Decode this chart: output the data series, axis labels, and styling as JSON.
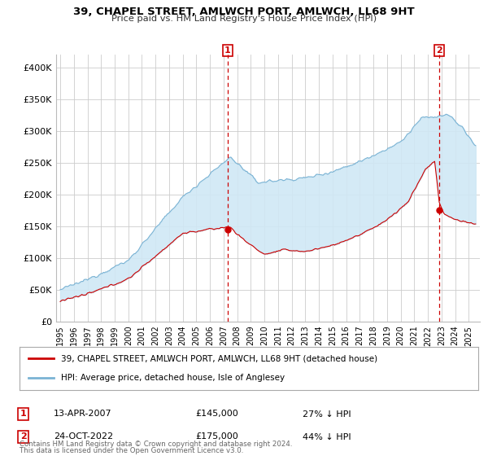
{
  "title": "39, CHAPEL STREET, AMLWCH PORT, AMLWCH, LL68 9HT",
  "subtitle": "Price paid vs. HM Land Registry's House Price Index (HPI)",
  "ylabel_ticks": [
    "£0",
    "£50K",
    "£100K",
    "£150K",
    "£200K",
    "£250K",
    "£300K",
    "£350K",
    "£400K"
  ],
  "ytick_values": [
    0,
    50000,
    100000,
    150000,
    200000,
    250000,
    300000,
    350000,
    400000
  ],
  "ylim": [
    0,
    420000
  ],
  "xlim_start": 1994.7,
  "xlim_end": 2025.8,
  "marker1_x": 2007.29,
  "marker1_y": 145000,
  "marker1_label": "13-APR-2007",
  "marker1_price": "£145,000",
  "marker1_hpi": "27% ↓ HPI",
  "marker2_x": 2022.81,
  "marker2_y": 175000,
  "marker2_label": "24-OCT-2022",
  "marker2_price": "£175,000",
  "marker2_hpi": "44% ↓ HPI",
  "legend_line1": "39, CHAPEL STREET, AMLWCH PORT, AMLWCH, LL68 9HT (detached house)",
  "legend_line2": "HPI: Average price, detached house, Isle of Anglesey",
  "footer1": "Contains HM Land Registry data © Crown copyright and database right 2024.",
  "footer2": "This data is licensed under the Open Government Licence v3.0.",
  "hpi_color": "#7ab3d4",
  "hpi_fill_color": "#d0e8f5",
  "price_color": "#cc0000",
  "dashed_line_color": "#cc0000",
  "background_color": "#ffffff",
  "grid_color": "#cccccc",
  "box_color": "#cc0000"
}
